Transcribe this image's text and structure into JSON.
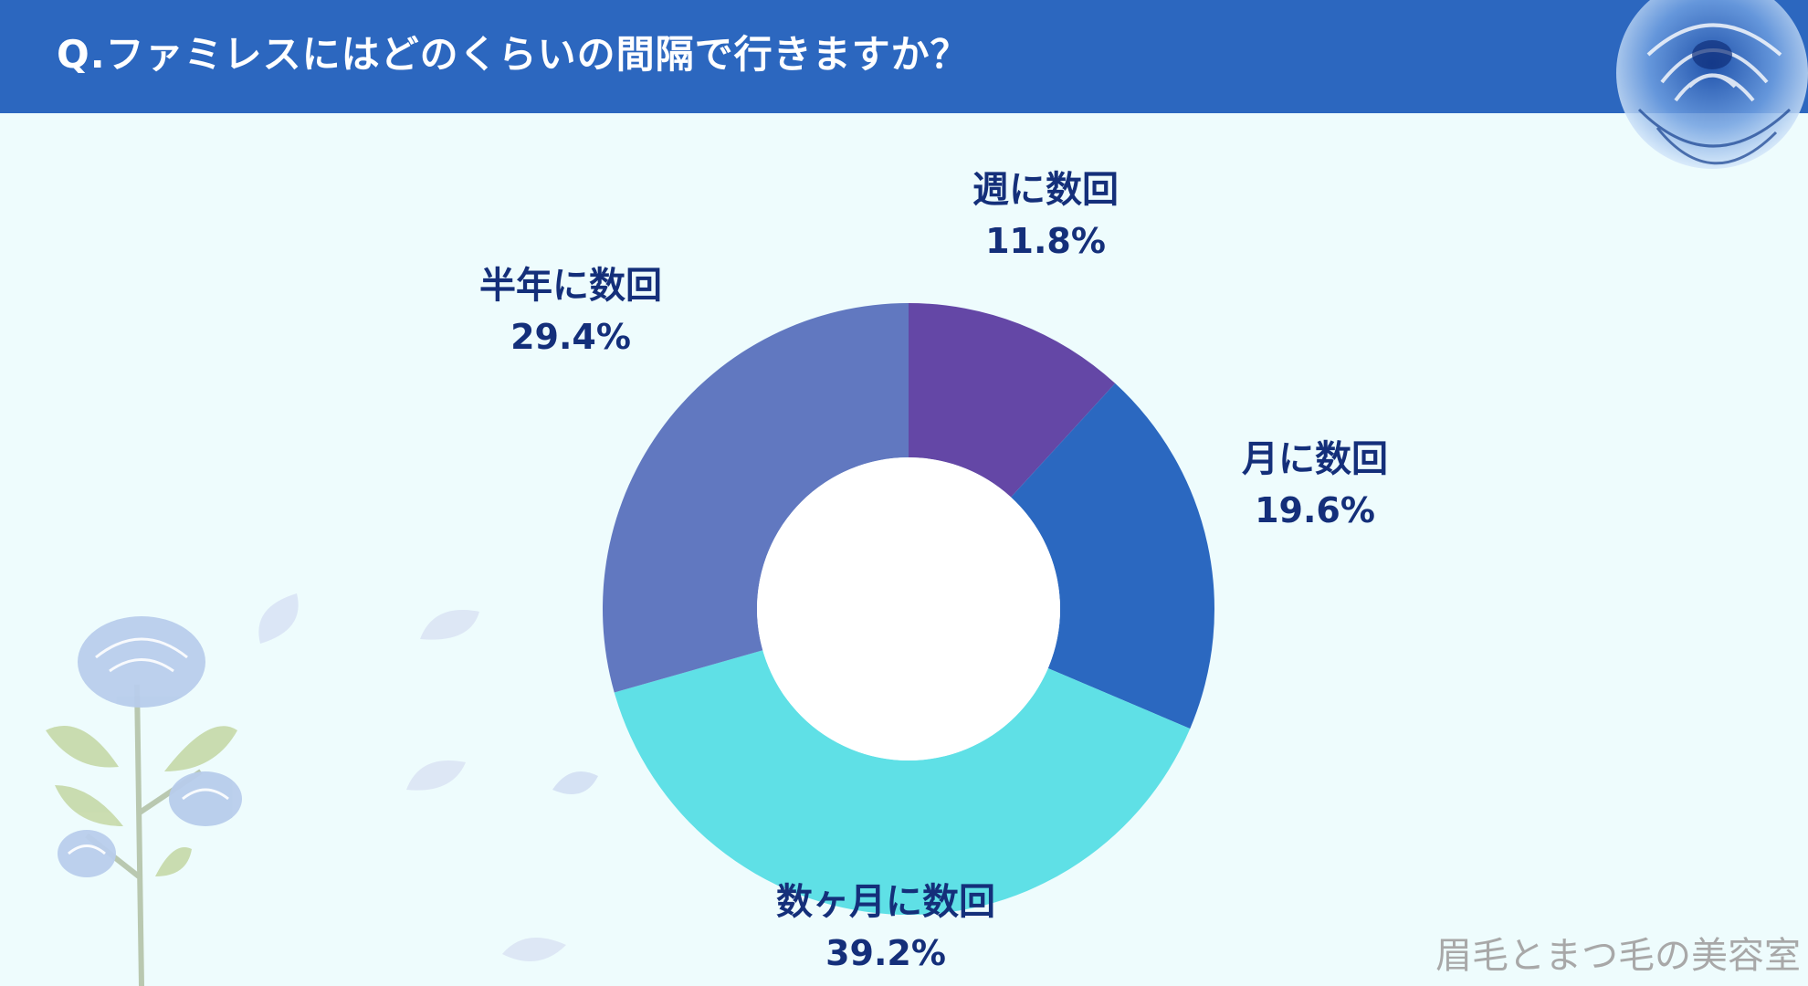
{
  "header": {
    "title": "Q.ファミレスにはどのくらいの間隔で行きますか？"
  },
  "chart_data": {
    "type": "pie",
    "donut": true,
    "slices": [
      {
        "label": "週に数回",
        "value": 11.8,
        "display": "11.8%",
        "color": "#6447a6"
      },
      {
        "label": "月に数回",
        "value": 19.6,
        "display": "19.6%",
        "color": "#2b68c0"
      },
      {
        "label": "数ヶ月に数回",
        "value": 39.2,
        "display": "39.2%",
        "color": "#5fe0e6"
      },
      {
        "label": "半年に数回",
        "value": 29.4,
        "display": "29.4%",
        "color": "#6178c0"
      }
    ]
  },
  "watermark": {
    "text": "眉毛とまつ毛の美容室"
  },
  "colors": {
    "header_bg": "#2c67bf",
    "page_bg": "#eefcfd",
    "label_text": "#142f7a"
  }
}
